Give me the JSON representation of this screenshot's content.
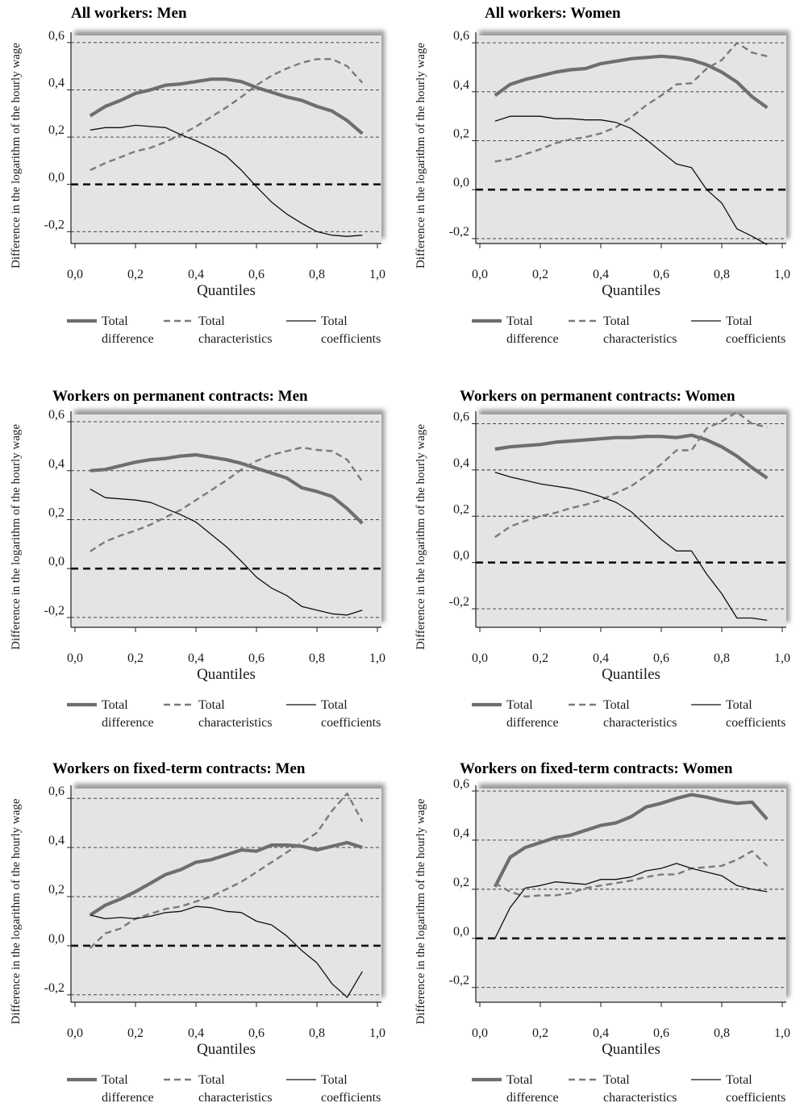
{
  "y_axis_label": "Difference in the logarithm of the hourly wage",
  "x_axis_label": "Quantiles",
  "legend": [
    {
      "line1": "Total",
      "line2": "difference",
      "style": "thick"
    },
    {
      "line1": "Total",
      "line2": "characteristics",
      "style": "dashed"
    },
    {
      "line1": "Total",
      "line2": "coefficients",
      "style": "thin"
    }
  ],
  "colors": {
    "plot_bg": "#e4e4e4",
    "thick": "#6e6e6e",
    "dashed": "#7a7a7a",
    "thin": "#111111",
    "grid": "#333333"
  },
  "chart_data": [
    {
      "type": "line",
      "title": "All workers: Men",
      "xlabel": "Quantiles",
      "ylabel": "Difference in the logarithm of the hourly wage",
      "xlim": [
        0,
        1
      ],
      "ylim": [
        -0.25,
        0.63
      ],
      "xticks": [
        "0,0",
        "0,2",
        "0,4",
        "0,6",
        "0,8",
        "1,0"
      ],
      "yticks": [
        {
          "v": -0.2,
          "label": "-0,2"
        },
        {
          "v": 0.0,
          "label": "0,0"
        },
        {
          "v": 0.2,
          "label": "0,2"
        },
        {
          "v": 0.4,
          "label": "0,4"
        },
        {
          "v": 0.6,
          "label": "0,6"
        }
      ],
      "x": [
        0.05,
        0.1,
        0.15,
        0.2,
        0.25,
        0.3,
        0.35,
        0.4,
        0.45,
        0.5,
        0.55,
        0.6,
        0.65,
        0.7,
        0.75,
        0.8,
        0.85,
        0.9,
        0.95
      ],
      "series": [
        {
          "name": "Total difference",
          "style": "thick",
          "values": [
            0.29,
            0.33,
            0.355,
            0.385,
            0.4,
            0.42,
            0.425,
            0.435,
            0.445,
            0.445,
            0.435,
            0.41,
            0.39,
            0.37,
            0.355,
            0.33,
            0.31,
            0.27,
            0.215
          ]
        },
        {
          "name": "Total characteristics",
          "style": "dashed",
          "values": [
            0.06,
            0.09,
            0.115,
            0.14,
            0.155,
            0.18,
            0.21,
            0.245,
            0.285,
            0.325,
            0.37,
            0.42,
            0.46,
            0.49,
            0.515,
            0.53,
            0.53,
            0.5,
            0.43
          ]
        },
        {
          "name": "Total coefficients",
          "style": "thin",
          "values": [
            0.23,
            0.24,
            0.24,
            0.25,
            0.245,
            0.24,
            0.21,
            0.185,
            0.155,
            0.12,
            0.06,
            -0.01,
            -0.075,
            -0.125,
            -0.165,
            -0.2,
            -0.215,
            -0.22,
            -0.215
          ]
        }
      ]
    },
    {
      "type": "line",
      "title": "All workers: Women",
      "xlabel": "Quantiles",
      "ylabel": "Difference in the logarithm of the hourly wage",
      "xlim": [
        0,
        1
      ],
      "ylim": [
        -0.22,
        0.63
      ],
      "xticks": [
        "0,0",
        "0,2",
        "0,4",
        "0,6",
        "0,8",
        "1,0"
      ],
      "yticks": [
        {
          "v": -0.2,
          "label": "-0,2"
        },
        {
          "v": 0.0,
          "label": "0,0"
        },
        {
          "v": 0.2,
          "label": "0,2"
        },
        {
          "v": 0.4,
          "label": "0,4"
        },
        {
          "v": 0.6,
          "label": "0,6"
        }
      ],
      "x": [
        0.05,
        0.1,
        0.15,
        0.2,
        0.25,
        0.3,
        0.35,
        0.4,
        0.45,
        0.5,
        0.55,
        0.6,
        0.65,
        0.7,
        0.75,
        0.8,
        0.85,
        0.9,
        0.95
      ],
      "series": [
        {
          "name": "Total difference",
          "style": "thick",
          "values": [
            0.385,
            0.43,
            0.45,
            0.465,
            0.48,
            0.49,
            0.495,
            0.515,
            0.525,
            0.535,
            0.54,
            0.545,
            0.54,
            0.53,
            0.51,
            0.48,
            0.44,
            0.38,
            0.335
          ]
        },
        {
          "name": "Total characteristics",
          "style": "dashed",
          "values": [
            0.115,
            0.125,
            0.145,
            0.165,
            0.19,
            0.205,
            0.215,
            0.23,
            0.255,
            0.295,
            0.345,
            0.385,
            0.43,
            0.435,
            0.495,
            0.53,
            0.6,
            0.56,
            0.545
          ]
        },
        {
          "name": "Total coefficients",
          "style": "thin",
          "values": [
            0.28,
            0.3,
            0.3,
            0.3,
            0.29,
            0.29,
            0.285,
            0.285,
            0.275,
            0.25,
            0.205,
            0.155,
            0.105,
            0.09,
            0.0,
            -0.055,
            -0.16,
            -0.19,
            -0.225
          ]
        }
      ]
    },
    {
      "type": "line",
      "title": "Workers on permanent contracts: Men",
      "xlabel": "Quantiles",
      "ylabel": "Difference in the logarithm of the hourly wage",
      "xlim": [
        0,
        1
      ],
      "ylim": [
        -0.24,
        0.63
      ],
      "xticks": [
        "0,0",
        "0,2",
        "0,4",
        "0,6",
        "0,8",
        "1,0"
      ],
      "yticks": [
        {
          "v": -0.2,
          "label": "-0,2"
        },
        {
          "v": 0.0,
          "label": "0,0"
        },
        {
          "v": 0.2,
          "label": "0,2"
        },
        {
          "v": 0.4,
          "label": "0,4"
        },
        {
          "v": 0.6,
          "label": "0,6"
        }
      ],
      "x": [
        0.05,
        0.1,
        0.15,
        0.2,
        0.25,
        0.3,
        0.35,
        0.4,
        0.45,
        0.5,
        0.55,
        0.6,
        0.65,
        0.7,
        0.75,
        0.8,
        0.85,
        0.9,
        0.95
      ],
      "series": [
        {
          "name": "Total difference",
          "style": "thick",
          "values": [
            0.4,
            0.405,
            0.42,
            0.435,
            0.445,
            0.45,
            0.46,
            0.465,
            0.455,
            0.445,
            0.43,
            0.41,
            0.39,
            0.37,
            0.33,
            0.315,
            0.295,
            0.245,
            0.185
          ]
        },
        {
          "name": "Total characteristics",
          "style": "dashed",
          "values": [
            0.07,
            0.11,
            0.135,
            0.155,
            0.18,
            0.21,
            0.24,
            0.28,
            0.32,
            0.36,
            0.405,
            0.44,
            0.465,
            0.48,
            0.495,
            0.485,
            0.48,
            0.445,
            0.355
          ]
        },
        {
          "name": "Total coefficients",
          "style": "thin",
          "values": [
            0.325,
            0.29,
            0.285,
            0.28,
            0.27,
            0.245,
            0.22,
            0.19,
            0.14,
            0.09,
            0.03,
            -0.035,
            -0.08,
            -0.11,
            -0.155,
            -0.17,
            -0.185,
            -0.19,
            -0.17
          ]
        }
      ]
    },
    {
      "type": "line",
      "title": "Workers on permanent contracts: Women",
      "xlabel": "Quantiles",
      "ylabel": "Difference in the logarithm of the hourly wage",
      "xlim": [
        0,
        1
      ],
      "ylim": [
        -0.28,
        0.64
      ],
      "xticks": [
        "0,0",
        "0,2",
        "0,4",
        "0,6",
        "0,8",
        "1,0"
      ],
      "yticks": [
        {
          "v": -0.2,
          "label": "-0,2"
        },
        {
          "v": 0.0,
          "label": "0,0"
        },
        {
          "v": 0.2,
          "label": "0,2"
        },
        {
          "v": 0.4,
          "label": "0,4"
        },
        {
          "v": 0.6,
          "label": "0,6"
        }
      ],
      "x": [
        0.05,
        0.1,
        0.15,
        0.2,
        0.25,
        0.3,
        0.35,
        0.4,
        0.45,
        0.5,
        0.55,
        0.6,
        0.65,
        0.7,
        0.75,
        0.8,
        0.85,
        0.9,
        0.95
      ],
      "series": [
        {
          "name": "Total difference",
          "style": "thick",
          "values": [
            0.49,
            0.5,
            0.505,
            0.51,
            0.52,
            0.525,
            0.53,
            0.535,
            0.54,
            0.54,
            0.545,
            0.545,
            0.54,
            0.55,
            0.53,
            0.5,
            0.46,
            0.41,
            0.365
          ]
        },
        {
          "name": "Total characteristics",
          "style": "dashed",
          "values": [
            0.11,
            0.155,
            0.18,
            0.2,
            0.215,
            0.235,
            0.25,
            0.27,
            0.3,
            0.33,
            0.375,
            0.425,
            0.485,
            0.485,
            0.58,
            0.61,
            0.65,
            0.6,
            0.585
          ]
        },
        {
          "name": "Total coefficients",
          "style": "thin",
          "values": [
            0.39,
            0.37,
            0.355,
            0.34,
            0.33,
            0.32,
            0.305,
            0.285,
            0.26,
            0.22,
            0.16,
            0.1,
            0.05,
            0.05,
            -0.05,
            -0.135,
            -0.24,
            -0.24,
            -0.25
          ]
        }
      ]
    },
    {
      "type": "line",
      "title": "Workers on fixed-term contracts: Men",
      "xlabel": "Quantiles",
      "ylabel": "Difference in the logarithm of the hourly wage",
      "xlim": [
        0,
        1
      ],
      "ylim": [
        -0.23,
        0.64
      ],
      "xticks": [
        "0,0",
        "0,2",
        "0,4",
        "0,6",
        "0,8",
        "1,0"
      ],
      "yticks": [
        {
          "v": -0.2,
          "label": "-0,2"
        },
        {
          "v": 0.0,
          "label": "0,0"
        },
        {
          "v": 0.2,
          "label": "0,2"
        },
        {
          "v": 0.4,
          "label": "0,4"
        },
        {
          "v": 0.6,
          "label": "0,6"
        }
      ],
      "x": [
        0.05,
        0.1,
        0.15,
        0.2,
        0.25,
        0.3,
        0.35,
        0.4,
        0.45,
        0.5,
        0.55,
        0.6,
        0.65,
        0.7,
        0.75,
        0.8,
        0.85,
        0.9,
        0.95
      ],
      "series": [
        {
          "name": "Total difference",
          "style": "thick",
          "values": [
            0.125,
            0.165,
            0.19,
            0.22,
            0.255,
            0.29,
            0.31,
            0.34,
            0.35,
            0.37,
            0.39,
            0.385,
            0.41,
            0.41,
            0.405,
            0.39,
            0.405,
            0.42,
            0.4
          ]
        },
        {
          "name": "Total characteristics",
          "style": "dashed",
          "values": [
            -0.01,
            0.05,
            0.07,
            0.11,
            0.13,
            0.15,
            0.16,
            0.18,
            0.2,
            0.23,
            0.26,
            0.3,
            0.34,
            0.38,
            0.42,
            0.46,
            0.55,
            0.62,
            0.505
          ]
        },
        {
          "name": "Total coefficients",
          "style": "thin",
          "values": [
            0.125,
            0.11,
            0.115,
            0.11,
            0.12,
            0.135,
            0.14,
            0.16,
            0.155,
            0.14,
            0.135,
            0.1,
            0.085,
            0.04,
            -0.02,
            -0.07,
            -0.155,
            -0.21,
            -0.105
          ]
        }
      ]
    },
    {
      "type": "line",
      "title": "Workers on fixed-term contracts: Women",
      "xlabel": "Quantiles",
      "ylabel": "Difference in the logarithm of the hourly wage",
      "xlim": [
        0,
        1
      ],
      "ylim": [
        -0.26,
        0.61
      ],
      "xticks": [
        "0,0",
        "0,2",
        "0,4",
        "0,6",
        "0,8",
        "1,0"
      ],
      "yticks": [
        {
          "v": -0.2,
          "label": "-0,2"
        },
        {
          "v": 0.0,
          "label": "0,0"
        },
        {
          "v": 0.2,
          "label": "0,2"
        },
        {
          "v": 0.4,
          "label": "0,4"
        },
        {
          "v": 0.6,
          "label": "0,6"
        }
      ],
      "x": [
        0.05,
        0.1,
        0.15,
        0.2,
        0.25,
        0.3,
        0.35,
        0.4,
        0.45,
        0.5,
        0.55,
        0.6,
        0.65,
        0.7,
        0.75,
        0.8,
        0.85,
        0.9,
        0.95
      ],
      "series": [
        {
          "name": "Total difference",
          "style": "thick",
          "values": [
            0.21,
            0.33,
            0.37,
            0.39,
            0.41,
            0.42,
            0.44,
            0.46,
            0.47,
            0.495,
            0.535,
            0.55,
            0.57,
            0.585,
            0.575,
            0.56,
            0.55,
            0.555,
            0.485
          ]
        },
        {
          "name": "Total characteristics",
          "style": "dashed",
          "values": [
            0.225,
            0.19,
            0.17,
            0.175,
            0.175,
            0.185,
            0.205,
            0.215,
            0.225,
            0.235,
            0.25,
            0.26,
            0.26,
            0.285,
            0.29,
            0.295,
            0.32,
            0.355,
            0.295
          ]
        },
        {
          "name": "Total coefficients",
          "style": "thin",
          "values": [
            0.0,
            0.125,
            0.205,
            0.215,
            0.23,
            0.225,
            0.22,
            0.24,
            0.24,
            0.25,
            0.275,
            0.285,
            0.305,
            0.285,
            0.27,
            0.255,
            0.215,
            0.2,
            0.19
          ]
        }
      ]
    }
  ]
}
